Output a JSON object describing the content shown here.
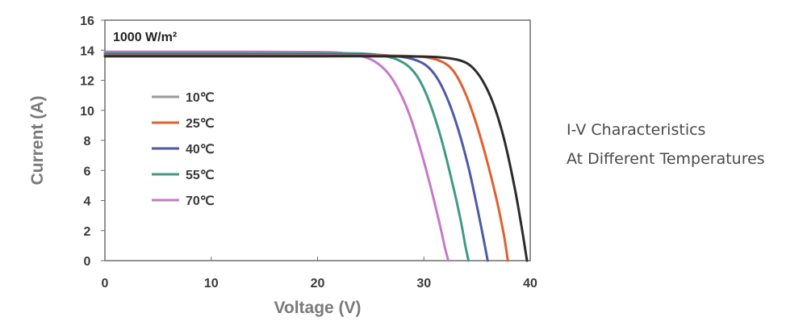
{
  "chart_data": {
    "type": "line",
    "title": "",
    "annotation": "1000 W/m²",
    "xlabel": "Voltage  (V)",
    "ylabel": "Current (A)",
    "xlim": [
      0,
      40
    ],
    "ylim": [
      0,
      16
    ],
    "x_ticks": [
      "0",
      "10",
      "20",
      "30",
      "40"
    ],
    "y_ticks": [
      "0",
      "2",
      "4",
      "6",
      "8",
      "10",
      "12",
      "14",
      "16"
    ],
    "grid": false,
    "legend_position": "left",
    "series": [
      {
        "name": "10℃",
        "color": "#2b2b2b",
        "legend_color": "#9a9a9a",
        "points": [
          [
            0,
            13.6
          ],
          [
            10,
            13.6
          ],
          [
            20,
            13.6
          ],
          [
            25,
            13.6
          ],
          [
            30,
            13.58
          ],
          [
            32,
            13.5
          ],
          [
            33.5,
            13.3
          ],
          [
            34.5,
            12.9
          ],
          [
            35.5,
            12.0
          ],
          [
            36.5,
            10.5
          ],
          [
            37.5,
            8.2
          ],
          [
            38.5,
            5.0
          ],
          [
            39.2,
            2.2
          ],
          [
            39.7,
            0
          ]
        ]
      },
      {
        "name": "25℃",
        "color": "#e0602f",
        "legend_color": "#e0602f",
        "points": [
          [
            0,
            13.65
          ],
          [
            10,
            13.65
          ],
          [
            20,
            13.65
          ],
          [
            25,
            13.65
          ],
          [
            29,
            13.6
          ],
          [
            30.5,
            13.5
          ],
          [
            31.8,
            13.2
          ],
          [
            32.8,
            12.6
          ],
          [
            33.8,
            11.3
          ],
          [
            34.8,
            9.4
          ],
          [
            35.8,
            7.0
          ],
          [
            36.8,
            4.2
          ],
          [
            37.5,
            1.8
          ],
          [
            37.9,
            0
          ]
        ]
      },
      {
        "name": "40℃",
        "color": "#4d5aa8",
        "legend_color": "#4d5aa8",
        "points": [
          [
            0,
            13.7
          ],
          [
            10,
            13.7
          ],
          [
            20,
            13.7
          ],
          [
            25,
            13.7
          ],
          [
            27.5,
            13.6
          ],
          [
            29,
            13.4
          ],
          [
            30.2,
            13.0
          ],
          [
            31.2,
            12.2
          ],
          [
            32.2,
            10.8
          ],
          [
            33.2,
            8.8
          ],
          [
            34.2,
            6.2
          ],
          [
            35.0,
            3.6
          ],
          [
            35.6,
            1.5
          ],
          [
            36.0,
            0
          ]
        ]
      },
      {
        "name": "55℃",
        "color": "#3f9a86",
        "legend_color": "#3f9a86",
        "points": [
          [
            0,
            13.8
          ],
          [
            10,
            13.8
          ],
          [
            20,
            13.8
          ],
          [
            24,
            13.78
          ],
          [
            26,
            13.65
          ],
          [
            27.4,
            13.4
          ],
          [
            28.6,
            12.9
          ],
          [
            29.6,
            12.0
          ],
          [
            30.6,
            10.4
          ],
          [
            31.6,
            8.2
          ],
          [
            32.6,
            5.4
          ],
          [
            33.4,
            2.9
          ],
          [
            33.9,
            1.0
          ],
          [
            34.2,
            0
          ]
        ]
      },
      {
        "name": "70℃",
        "color": "#c679c8",
        "legend_color": "#c679c8",
        "points": [
          [
            0,
            13.9
          ],
          [
            10,
            13.9
          ],
          [
            20,
            13.88
          ],
          [
            22.5,
            13.8
          ],
          [
            24.2,
            13.6
          ],
          [
            25.5,
            13.2
          ],
          [
            26.6,
            12.5
          ],
          [
            27.6,
            11.4
          ],
          [
            28.6,
            9.8
          ],
          [
            29.6,
            7.6
          ],
          [
            30.6,
            5.0
          ],
          [
            31.5,
            2.4
          ],
          [
            32.0,
            0.8
          ],
          [
            32.3,
            0
          ]
        ]
      }
    ]
  },
  "caption": {
    "line1": "I-V Characteristics",
    "line2": "At Different Temperatures"
  }
}
